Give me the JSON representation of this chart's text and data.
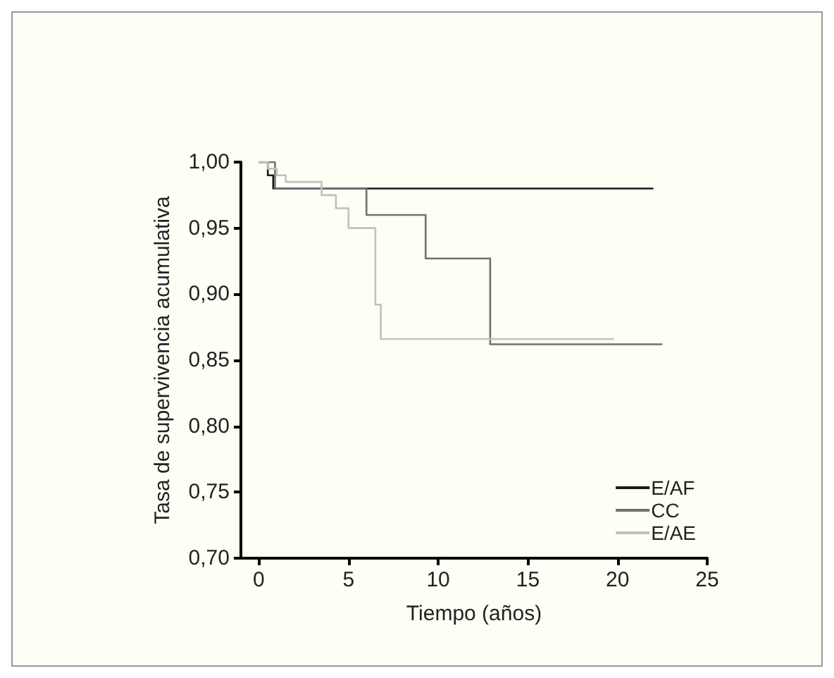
{
  "chart_data": {
    "type": "step",
    "xlabel": "Tiempo (años)",
    "ylabel": "Tasa de supervivencia acumulativa",
    "xlim": [
      -1,
      25
    ],
    "xticks": [
      0,
      5,
      10,
      15,
      20,
      25
    ],
    "ylim": [
      0.7,
      1.0
    ],
    "yticks": [
      {
        "value": 0.7,
        "label": "0,70"
      },
      {
        "value": 0.75,
        "label": "0,75"
      },
      {
        "value": 0.8,
        "label": "0,80"
      },
      {
        "value": 0.85,
        "label": "0,85"
      },
      {
        "value": 0.9,
        "label": "0,90"
      },
      {
        "value": 0.95,
        "label": "0,95"
      },
      {
        "value": 1.0,
        "label": "1,00"
      }
    ],
    "grid": false,
    "legend": "bottom right",
    "marker": "none",
    "line_style": "solid",
    "series": [
      {
        "name": "E/AF",
        "color": "#1a1a1a",
        "x": [
          0,
          0.5,
          0.8,
          22
        ],
        "values": [
          1.0,
          0.99,
          0.98,
          0.98
        ]
      },
      {
        "name": "CC",
        "color": "#707070",
        "x": [
          0,
          0.9,
          6.0,
          9.3,
          12.9,
          22.5
        ],
        "values": [
          1.0,
          0.98,
          0.96,
          0.927,
          0.862,
          0.862
        ]
      },
      {
        "name": "E/AE",
        "color": "#c0c0c0",
        "x": [
          0,
          0.5,
          1.0,
          1.5,
          3.5,
          4.3,
          5.0,
          6.5,
          6.8,
          19.8
        ],
        "values": [
          1.0,
          0.995,
          0.99,
          0.985,
          0.975,
          0.965,
          0.95,
          0.892,
          0.866,
          0.866
        ]
      }
    ]
  }
}
